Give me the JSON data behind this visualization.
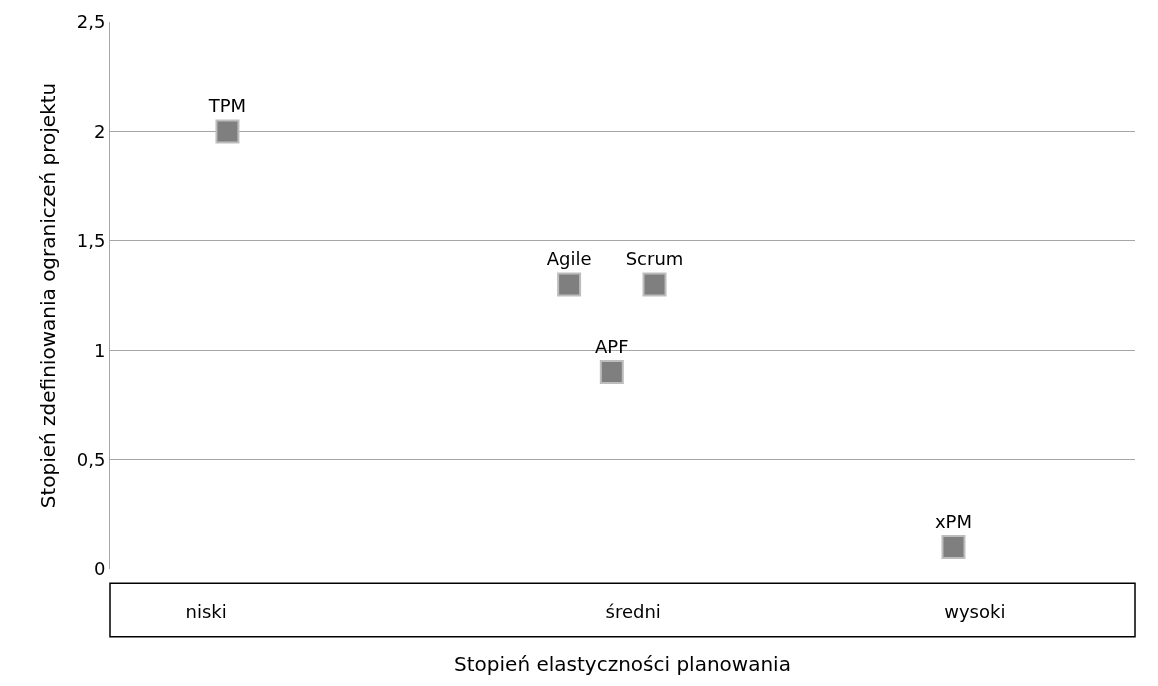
{
  "chart_data": {
    "type": "scatter",
    "xlabel": "Stopień elastyczności planowania",
    "ylabel": "Stopień zdefiniowania ograniczeń projektu",
    "categories": [
      null,
      null,
      null,
      null,
      "niski",
      null,
      null,
      null,
      null,
      null,
      null,
      null,
      null,
      null,
      null,
      null,
      null,
      null,
      null,
      null,
      null,
      null,
      null,
      null,
      "średni",
      null,
      null,
      null,
      null,
      null,
      null,
      null,
      null,
      null,
      null,
      null,
      null,
      null,
      null,
      null,
      "wysoki",
      null,
      null,
      null,
      null,
      null,
      null,
      null
    ],
    "series": [
      {
        "color": "#7f7f7f",
        "values": [
          null,
          null,
          null,
          null,
          null,
          2.0,
          null,
          null,
          null,
          null,
          null,
          null,
          null,
          null,
          null,
          null,
          null,
          null,
          null,
          null,
          null,
          1.3,
          null,
          0.9,
          null,
          1.3,
          null,
          null,
          null,
          null,
          null,
          null,
          null,
          null,
          null,
          null,
          null,
          null,
          null,
          0.1,
          null,
          null,
          null,
          null,
          null,
          null,
          null,
          null
        ],
        "value_labels": [
          null,
          null,
          null,
          null,
          null,
          "TPM",
          null,
          null,
          null,
          null,
          null,
          null,
          null,
          null,
          null,
          null,
          null,
          null,
          null,
          null,
          null,
          "Agile",
          null,
          "APF",
          null,
          "Scrum",
          null,
          null,
          null,
          null,
          null,
          null,
          null,
          null,
          null,
          null,
          null,
          null,
          null,
          "xPM",
          null,
          null,
          null,
          null,
          null,
          null,
          null,
          null
        ]
      }
    ],
    "ylim": [
      0,
      2.5
    ],
    "yticks": [
      {
        "value": 0,
        "label": "0"
      },
      {
        "value": 0.5,
        "label": "0,5"
      },
      {
        "value": 1,
        "label": "1"
      },
      {
        "value": 1.5,
        "label": "1,5"
      },
      {
        "value": 2,
        "label": "2"
      },
      {
        "value": 2.5,
        "label": "2,5"
      }
    ],
    "grid": "y",
    "marker": "square"
  }
}
